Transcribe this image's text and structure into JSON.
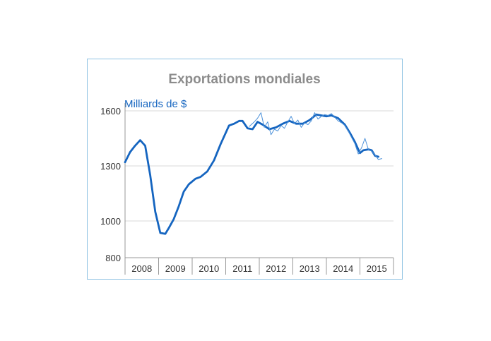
{
  "chart_data": {
    "type": "line",
    "title": "Exportations mondiales",
    "ylabel": "Milliards de $",
    "xlabel": "",
    "ylim": [
      800,
      1650
    ],
    "yticks": [
      800,
      1000,
      1300,
      1600
    ],
    "xlim": [
      2008.0,
      2016.0
    ],
    "xticks": [
      "2008",
      "2009",
      "2010",
      "2011",
      "2012",
      "2013",
      "2014",
      "2015"
    ],
    "grid": true,
    "colors": {
      "smooth": "#1565c0",
      "raw": "#4a90d9"
    },
    "series": [
      {
        "role": "smoothed",
        "x": [
          2008.0,
          2008.15,
          2008.3,
          2008.45,
          2008.6,
          2008.75,
          2008.9,
          2009.05,
          2009.2,
          2009.3,
          2009.45,
          2009.6,
          2009.75,
          2009.9,
          2010.1,
          2010.25,
          2010.45,
          2010.65,
          2010.85,
          2011.0,
          2011.1,
          2011.25,
          2011.4,
          2011.5,
          2011.65,
          2011.8,
          2011.95,
          2012.1,
          2012.3,
          2012.5,
          2012.7,
          2012.9,
          2013.1,
          2013.3,
          2013.5,
          2013.7,
          2013.85,
          2014.0,
          2014.15,
          2014.35,
          2014.55,
          2014.7,
          2014.85,
          2015.0,
          2015.1,
          2015.25,
          2015.35,
          2015.45,
          2015.55
        ],
        "y": [
          1320,
          1375,
          1410,
          1440,
          1410,
          1250,
          1050,
          935,
          930,
          960,
          1010,
          1080,
          1160,
          1200,
          1230,
          1240,
          1270,
          1330,
          1420,
          1480,
          1520,
          1530,
          1545,
          1545,
          1505,
          1500,
          1540,
          1525,
          1500,
          1510,
          1530,
          1545,
          1530,
          1530,
          1550,
          1580,
          1575,
          1570,
          1575,
          1560,
          1525,
          1480,
          1430,
          1370,
          1385,
          1390,
          1385,
          1355,
          1350
        ]
      },
      {
        "role": "monthly",
        "x": [
          2011.7,
          2011.85,
          2011.95,
          2012.05,
          2012.15,
          2012.25,
          2012.35,
          2012.45,
          2012.55,
          2012.65,
          2012.75,
          2012.85,
          2012.95,
          2013.05,
          2013.15,
          2013.25,
          2013.35,
          2013.45,
          2013.55,
          2013.65,
          2013.75,
          2013.85,
          2013.95,
          2014.05,
          2014.15,
          2014.25,
          2014.35,
          2014.45,
          2014.55,
          2014.65,
          2014.75,
          2014.85,
          2014.95,
          2015.05,
          2015.15,
          2015.25,
          2015.35,
          2015.45,
          2015.55,
          2015.65
        ],
        "y": [
          1515,
          1540,
          1560,
          1590,
          1510,
          1540,
          1470,
          1500,
          1490,
          1520,
          1505,
          1540,
          1570,
          1530,
          1550,
          1510,
          1535,
          1525,
          1545,
          1590,
          1555,
          1570,
          1580,
          1575,
          1585,
          1565,
          1545,
          1535,
          1520,
          1490,
          1455,
          1420,
          1365,
          1400,
          1450,
          1390,
          1380,
          1360,
          1335,
          1340
        ]
      }
    ]
  }
}
